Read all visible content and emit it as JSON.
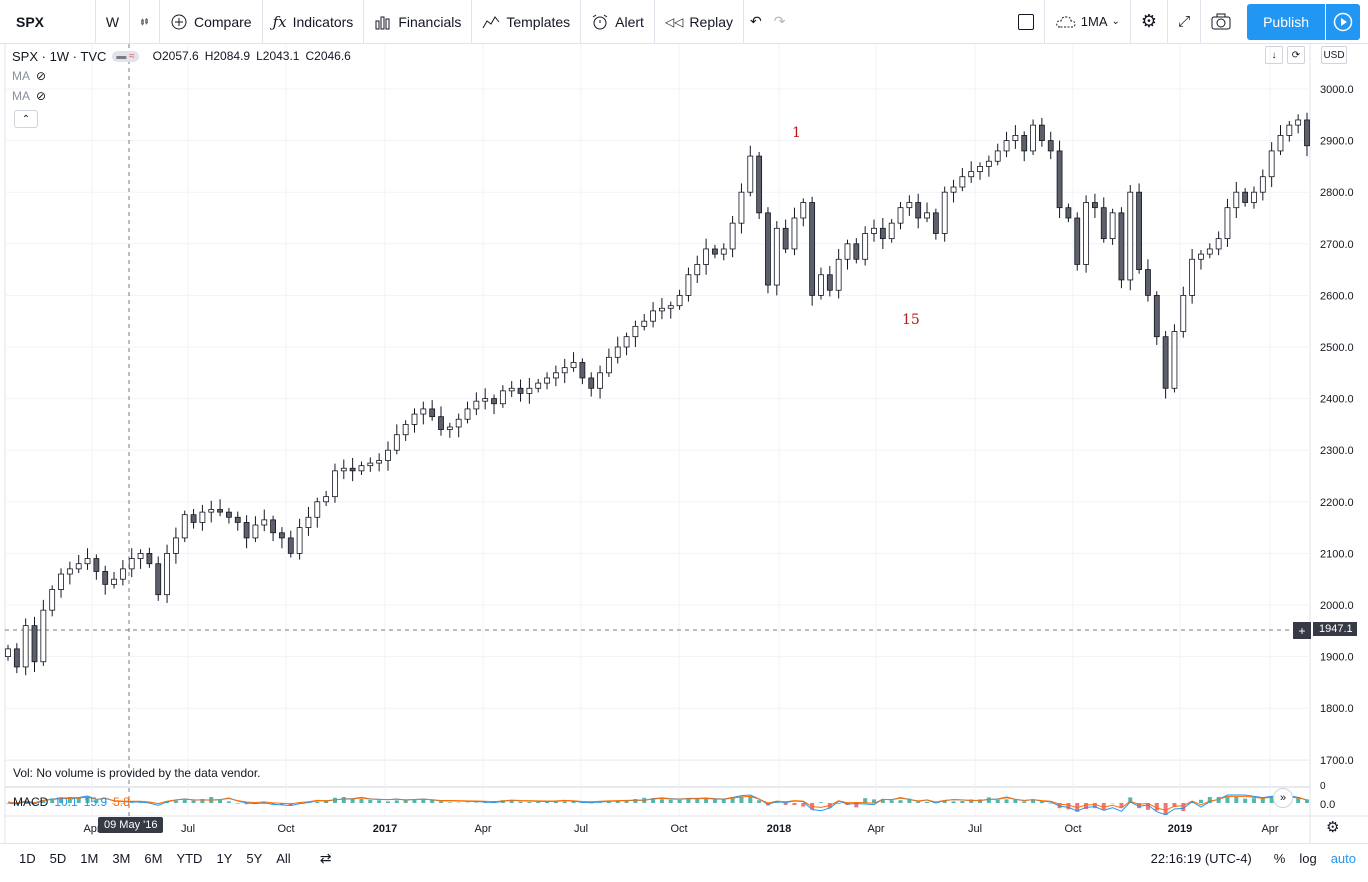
{
  "toolbar": {
    "symbol": "SPX",
    "interval": "W",
    "compare": "Compare",
    "indicators": "Indicators",
    "financials": "Financials",
    "templates": "Templates",
    "alert": "Alert",
    "replay": "Replay",
    "layout_name": "1MA",
    "publish": "Publish"
  },
  "legend": {
    "title": "SPX · 1W · TVC",
    "open": "O2057.6",
    "high": "H2084.9",
    "low": "L2043.1",
    "close": "C2046.6",
    "ma1": "MA",
    "ma2": "MA"
  },
  "scale": {
    "currency": "USD",
    "ticks": [
      "3000.0",
      "2900.0",
      "2800.0",
      "2700.0",
      "2600.0",
      "2500.0",
      "2400.0",
      "2300.0",
      "2200.0",
      "2100.0",
      "2000.0",
      "1900.0",
      "1800.0",
      "1700.0"
    ],
    "crosshair_price": "1947.1",
    "macd_ticks": [
      "0",
      "0.0"
    ]
  },
  "annotations": {
    "label1": "1",
    "label15": "15"
  },
  "volume": {
    "text": "Vol: No volume is provided by the data vendor."
  },
  "macd": {
    "name": "MACD",
    "v1": "10.1",
    "v2": "15.9",
    "v3": "5.8"
  },
  "time_axis": {
    "labels": [
      "Apr",
      "Jul",
      "Oct",
      "2017",
      "Apr",
      "Jul",
      "Oct",
      "2018",
      "Apr",
      "Jul",
      "Oct",
      "2019",
      "Apr"
    ],
    "tooltip": "09 May '16"
  },
  "bottom": {
    "ranges": [
      "1D",
      "5D",
      "1M",
      "3M",
      "6M",
      "YTD",
      "1Y",
      "5Y",
      "All"
    ],
    "time": "22:16:19 (UTC-4)",
    "percent": "%",
    "log": "log",
    "auto": "auto"
  },
  "colors": {
    "accent": "#2196f3",
    "candle": "#5d606b",
    "annotation": "#b71c1c",
    "macd_up": "#26a69a",
    "macd_down": "#ef5350"
  },
  "chart_data": {
    "type": "candlestick",
    "title": "SPX · 1W · TVC",
    "ylim": [
      1700,
      3050
    ],
    "weekly_closes": [
      1915,
      1880,
      1960,
      1890,
      1990,
      2030,
      2060,
      2070,
      2080,
      2090,
      2065,
      2040,
      2050,
      2070,
      2090,
      2100,
      2080,
      2020,
      2100,
      2130,
      2175,
      2160,
      2180,
      2185,
      2180,
      2170,
      2160,
      2130,
      2155,
      2165,
      2140,
      2130,
      2100,
      2150,
      2170,
      2200,
      2210,
      2260,
      2265,
      2260,
      2270,
      2275,
      2280,
      2300,
      2330,
      2350,
      2370,
      2380,
      2365,
      2340,
      2345,
      2360,
      2380,
      2395,
      2400,
      2390,
      2415,
      2420,
      2410,
      2420,
      2430,
      2440,
      2450,
      2460,
      2470,
      2440,
      2420,
      2450,
      2480,
      2500,
      2520,
      2540,
      2550,
      2570,
      2575,
      2580,
      2600,
      2640,
      2660,
      2690,
      2680,
      2690,
      2740,
      2800,
      2870,
      2760,
      2620,
      2730,
      2690,
      2750,
      2780,
      2600,
      2640,
      2610,
      2670,
      2700,
      2670,
      2720,
      2730,
      2710,
      2740,
      2770,
      2780,
      2750,
      2760,
      2720,
      2800,
      2810,
      2830,
      2840,
      2850,
      2860,
      2880,
      2900,
      2910,
      2880,
      2930,
      2900,
      2880,
      2770,
      2750,
      2660,
      2780,
      2770,
      2710,
      2760,
      2630,
      2800,
      2650,
      2600,
      2520,
      2420,
      2530,
      2600,
      2670,
      2680,
      2690,
      2710,
      2770,
      2800,
      2780,
      2800,
      2830,
      2880,
      2910,
      2930,
      2940,
      2890
    ]
  }
}
